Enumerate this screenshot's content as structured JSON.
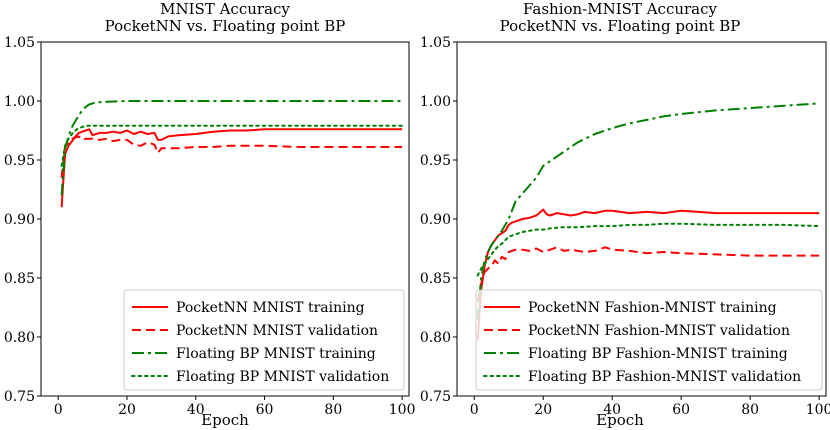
{
  "chart_data": [
    {
      "type": "line",
      "title": [
        "MNIST Accuracy",
        "PocketNN vs. Floating point BP"
      ],
      "xlabel": "Epoch",
      "ylabel": "",
      "xlim": [
        -5,
        102
      ],
      "ylim": [
        0.75,
        1.05
      ],
      "xticks": [
        0,
        20,
        40,
        60,
        80,
        100
      ],
      "xtick_labels": [
        "0",
        "20",
        "40",
        "60",
        "80",
        "100"
      ],
      "yticks": [
        0.75,
        0.8,
        0.85,
        0.9,
        0.95,
        1.0,
        1.05
      ],
      "ytick_labels": [
        "0.75",
        "0.80",
        "0.85",
        "0.90",
        "0.95",
        "1.00",
        "1.05"
      ],
      "legend_position": "lower-right",
      "series": [
        {
          "name": "PocketNN MNIST training",
          "color": "#ff0000",
          "dash": "solid",
          "x": [
            1,
            2,
            3,
            4,
            5,
            6,
            7,
            8,
            9,
            10,
            12,
            14,
            16,
            18,
            20,
            22,
            24,
            26,
            28,
            29,
            30,
            32,
            35,
            40,
            45,
            50,
            55,
            60,
            65,
            70,
            80,
            90,
            100
          ],
          "y": [
            0.91,
            0.955,
            0.962,
            0.966,
            0.97,
            0.973,
            0.974,
            0.975,
            0.976,
            0.971,
            0.973,
            0.973,
            0.974,
            0.973,
            0.975,
            0.972,
            0.974,
            0.972,
            0.973,
            0.967,
            0.967,
            0.97,
            0.971,
            0.972,
            0.974,
            0.975,
            0.975,
            0.976,
            0.976,
            0.976,
            0.976,
            0.976,
            0.976
          ]
        },
        {
          "name": "PocketNN MNIST validation",
          "color": "#ff0000",
          "dash": "dashed",
          "x": [
            1,
            2,
            3,
            4,
            5,
            6,
            7,
            8,
            10,
            12,
            14,
            16,
            18,
            20,
            22,
            24,
            26,
            28,
            29,
            30,
            32,
            35,
            40,
            45,
            50,
            60,
            70,
            80,
            90,
            100
          ],
          "y": [
            0.935,
            0.962,
            0.964,
            0.968,
            0.969,
            0.97,
            0.967,
            0.968,
            0.968,
            0.967,
            0.968,
            0.966,
            0.967,
            0.967,
            0.963,
            0.962,
            0.965,
            0.963,
            0.956,
            0.96,
            0.96,
            0.96,
            0.961,
            0.961,
            0.962,
            0.962,
            0.961,
            0.961,
            0.961,
            0.961
          ]
        },
        {
          "name": "Floating BP MNIST training",
          "color": "#008000",
          "dash": "dashdot",
          "x": [
            1,
            2,
            3,
            4,
            5,
            6,
            7,
            8,
            9,
            10,
            11,
            12,
            15,
            20,
            30,
            40,
            60,
            80,
            100
          ],
          "y": [
            0.92,
            0.96,
            0.97,
            0.978,
            0.983,
            0.988,
            0.992,
            0.995,
            0.997,
            0.998,
            0.999,
            0.999,
            0.9995,
            1.0,
            1.0,
            1.0,
            1.0,
            1.0,
            1.0
          ]
        },
        {
          "name": "Floating BP MNIST validation",
          "color": "#008000",
          "dash": "dotted",
          "x": [
            1,
            2,
            3,
            4,
            5,
            6,
            7,
            8,
            9,
            10,
            12,
            15,
            20,
            30,
            40,
            60,
            80,
            100
          ],
          "y": [
            0.945,
            0.962,
            0.968,
            0.972,
            0.975,
            0.977,
            0.978,
            0.979,
            0.979,
            0.979,
            0.979,
            0.979,
            0.979,
            0.979,
            0.979,
            0.979,
            0.979,
            0.979
          ]
        }
      ]
    },
    {
      "type": "line",
      "title": [
        "Fashion-MNIST Accuracy",
        "PocketNN vs. Floating point BP"
      ],
      "xlabel": "Epoch",
      "ylabel": "",
      "xlim": [
        -5,
        102
      ],
      "ylim": [
        0.75,
        1.05
      ],
      "xticks": [
        0,
        20,
        40,
        60,
        80,
        100
      ],
      "xtick_labels": [
        "0",
        "20",
        "40",
        "60",
        "80",
        "100"
      ],
      "yticks": [
        0.75,
        0.8,
        0.85,
        0.9,
        0.95,
        1.0,
        1.05
      ],
      "ytick_labels": [
        "0.75",
        "0.80",
        "0.85",
        "0.90",
        "0.95",
        "1.00",
        "1.05"
      ],
      "legend_position": "lower-right",
      "series": [
        {
          "name": "PocketNN Fashion-MNIST training",
          "color": "#ff0000",
          "dash": "solid",
          "x": [
            1,
            2,
            3,
            4,
            5,
            6,
            7,
            8,
            9,
            10,
            11,
            12,
            14,
            16,
            18,
            20,
            21,
            22,
            24,
            26,
            28,
            30,
            32,
            35,
            38,
            40,
            45,
            50,
            55,
            60,
            65,
            70,
            80,
            90,
            100
          ],
          "y": [
            0.797,
            0.84,
            0.86,
            0.872,
            0.878,
            0.882,
            0.886,
            0.888,
            0.89,
            0.895,
            0.897,
            0.898,
            0.9,
            0.901,
            0.903,
            0.908,
            0.904,
            0.903,
            0.905,
            0.904,
            0.903,
            0.904,
            0.906,
            0.905,
            0.907,
            0.907,
            0.905,
            0.906,
            0.905,
            0.907,
            0.906,
            0.905,
            0.905,
            0.905,
            0.905
          ]
        },
        {
          "name": "PocketNN Fashion-MNIST validation",
          "color": "#ff0000",
          "dash": "dashed",
          "x": [
            1,
            2,
            3,
            4,
            5,
            6,
            7,
            8,
            9,
            10,
            12,
            14,
            16,
            18,
            20,
            22,
            24,
            26,
            28,
            30,
            32,
            35,
            38,
            40,
            45,
            50,
            55,
            60,
            70,
            80,
            90,
            100
          ],
          "y": [
            0.83,
            0.845,
            0.855,
            0.858,
            0.86,
            0.865,
            0.862,
            0.868,
            0.866,
            0.872,
            0.874,
            0.874,
            0.873,
            0.875,
            0.872,
            0.874,
            0.876,
            0.873,
            0.874,
            0.873,
            0.872,
            0.873,
            0.876,
            0.874,
            0.873,
            0.871,
            0.872,
            0.871,
            0.87,
            0.869,
            0.869,
            0.869
          ]
        },
        {
          "name": "Floating BP Fashion-MNIST training",
          "color": "#008000",
          "dash": "dashdot",
          "x": [
            1,
            2,
            3,
            4,
            5,
            6,
            7,
            8,
            10,
            12,
            15,
            18,
            20,
            25,
            30,
            35,
            40,
            45,
            50,
            55,
            60,
            70,
            80,
            90,
            100
          ],
          "y": [
            0.815,
            0.85,
            0.865,
            0.872,
            0.878,
            0.882,
            0.886,
            0.89,
            0.9,
            0.915,
            0.925,
            0.935,
            0.945,
            0.955,
            0.965,
            0.972,
            0.977,
            0.981,
            0.984,
            0.987,
            0.989,
            0.992,
            0.994,
            0.996,
            0.998
          ]
        },
        {
          "name": "Floating BP Fashion-MNIST validation",
          "color": "#008000",
          "dash": "dotted",
          "x": [
            1,
            2,
            3,
            4,
            5,
            6,
            7,
            8,
            10,
            12,
            14,
            16,
            18,
            20,
            22,
            25,
            28,
            30,
            35,
            40,
            45,
            50,
            55,
            60,
            70,
            80,
            90,
            100
          ],
          "y": [
            0.852,
            0.858,
            0.862,
            0.866,
            0.87,
            0.874,
            0.877,
            0.879,
            0.885,
            0.887,
            0.889,
            0.89,
            0.891,
            0.891,
            0.892,
            0.893,
            0.893,
            0.893,
            0.894,
            0.894,
            0.895,
            0.895,
            0.896,
            0.896,
            0.895,
            0.895,
            0.895,
            0.894
          ]
        }
      ]
    }
  ]
}
